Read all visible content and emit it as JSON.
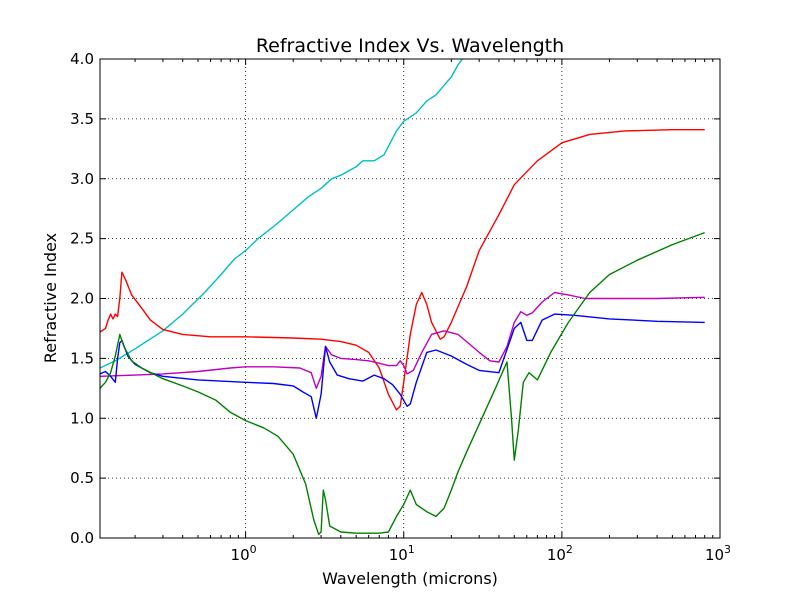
{
  "chart_data": {
    "type": "line",
    "title": "Refractive Index Vs. Wavelength",
    "xlabel": "Wavelength (microns)",
    "ylabel": "Refractive Index",
    "xscale": "log",
    "xlim": [
      0.12,
      1000
    ],
    "ylim": [
      0.0,
      4.0
    ],
    "grid": true,
    "legend": "none",
    "x_ticks": [
      {
        "value": 1,
        "base": "10",
        "exp": "0"
      },
      {
        "value": 10,
        "base": "10",
        "exp": "1"
      },
      {
        "value": 100,
        "base": "10",
        "exp": "2"
      },
      {
        "value": 1000,
        "base": "10",
        "exp": "3"
      }
    ],
    "y_ticks": [
      "0.0",
      "0.5",
      "1.0",
      "1.5",
      "2.0",
      "2.5",
      "3.0",
      "3.5",
      "4.0"
    ],
    "series": [
      {
        "color": "#00bfbf",
        "points": [
          [
            0.12,
            1.42
          ],
          [
            0.15,
            1.48
          ],
          [
            0.2,
            1.58
          ],
          [
            0.3,
            1.73
          ],
          [
            0.4,
            1.87
          ],
          [
            0.55,
            2.05
          ],
          [
            0.7,
            2.2
          ],
          [
            0.85,
            2.33
          ],
          [
            1.0,
            2.4
          ],
          [
            1.2,
            2.5
          ],
          [
            1.5,
            2.6
          ],
          [
            2.0,
            2.74
          ],
          [
            2.5,
            2.85
          ],
          [
            3.0,
            2.92
          ],
          [
            3.5,
            3.0
          ],
          [
            4.0,
            3.03
          ],
          [
            5.0,
            3.1
          ],
          [
            5.5,
            3.15
          ],
          [
            6.5,
            3.15
          ],
          [
            7.5,
            3.2
          ],
          [
            9.0,
            3.4
          ],
          [
            10.0,
            3.48
          ],
          [
            12.0,
            3.55
          ],
          [
            14.0,
            3.65
          ],
          [
            16.0,
            3.7
          ],
          [
            18.0,
            3.78
          ],
          [
            20.0,
            3.85
          ],
          [
            22.0,
            3.95
          ],
          [
            23.5,
            4.0
          ]
        ]
      },
      {
        "color": "#ff0000",
        "points": [
          [
            0.12,
            1.72
          ],
          [
            0.13,
            1.75
          ],
          [
            0.135,
            1.82
          ],
          [
            0.14,
            1.87
          ],
          [
            0.145,
            1.83
          ],
          [
            0.15,
            1.87
          ],
          [
            0.155,
            1.85
          ],
          [
            0.16,
            2.0
          ],
          [
            0.165,
            2.22
          ],
          [
            0.175,
            2.15
          ],
          [
            0.19,
            2.03
          ],
          [
            0.22,
            1.92
          ],
          [
            0.25,
            1.82
          ],
          [
            0.3,
            1.74
          ],
          [
            0.4,
            1.7
          ],
          [
            0.6,
            1.68
          ],
          [
            1.0,
            1.68
          ],
          [
            2.0,
            1.67
          ],
          [
            3.0,
            1.66
          ],
          [
            4.0,
            1.64
          ],
          [
            5.0,
            1.61
          ],
          [
            6.0,
            1.55
          ],
          [
            7.0,
            1.42
          ],
          [
            8.0,
            1.2
          ],
          [
            9.0,
            1.07
          ],
          [
            9.5,
            1.1
          ],
          [
            10.0,
            1.3
          ],
          [
            11.0,
            1.7
          ],
          [
            12.0,
            1.95
          ],
          [
            13.0,
            2.05
          ],
          [
            14.0,
            1.95
          ],
          [
            15.0,
            1.8
          ],
          [
            17.0,
            1.66
          ],
          [
            18.0,
            1.68
          ],
          [
            20.0,
            1.8
          ],
          [
            25.0,
            2.1
          ],
          [
            30.0,
            2.4
          ],
          [
            40.0,
            2.7
          ],
          [
            50.0,
            2.95
          ],
          [
            70.0,
            3.15
          ],
          [
            100.0,
            3.3
          ],
          [
            150.0,
            3.37
          ],
          [
            250.0,
            3.4
          ],
          [
            500.0,
            3.41
          ],
          [
            800.0,
            3.41
          ]
        ]
      },
      {
        "color": "#bf00bf",
        "points": [
          [
            0.12,
            1.35
          ],
          [
            0.2,
            1.36
          ],
          [
            0.3,
            1.37
          ],
          [
            0.5,
            1.39
          ],
          [
            0.8,
            1.42
          ],
          [
            1.0,
            1.43
          ],
          [
            1.5,
            1.43
          ],
          [
            2.2,
            1.42
          ],
          [
            2.6,
            1.38
          ],
          [
            2.8,
            1.25
          ],
          [
            3.0,
            1.35
          ],
          [
            3.2,
            1.6
          ],
          [
            3.5,
            1.53
          ],
          [
            4.0,
            1.5
          ],
          [
            5.0,
            1.49
          ],
          [
            6.0,
            1.48
          ],
          [
            7.0,
            1.46
          ],
          [
            8.0,
            1.44
          ],
          [
            9.0,
            1.44
          ],
          [
            9.5,
            1.48
          ],
          [
            10.0,
            1.44
          ],
          [
            10.5,
            1.37
          ],
          [
            11.5,
            1.4
          ],
          [
            13.0,
            1.55
          ],
          [
            15.0,
            1.7
          ],
          [
            18.0,
            1.73
          ],
          [
            22.0,
            1.7
          ],
          [
            26.0,
            1.62
          ],
          [
            30.0,
            1.55
          ],
          [
            35.0,
            1.48
          ],
          [
            40.0,
            1.47
          ],
          [
            45.0,
            1.6
          ],
          [
            50.0,
            1.8
          ],
          [
            55.0,
            1.89
          ],
          [
            60.0,
            1.86
          ],
          [
            65.0,
            1.88
          ],
          [
            75.0,
            1.97
          ],
          [
            90.0,
            2.05
          ],
          [
            110.0,
            2.03
          ],
          [
            140.0,
            2.0
          ],
          [
            200.0,
            2.0
          ],
          [
            400.0,
            2.0
          ],
          [
            800.0,
            2.01
          ]
        ]
      },
      {
        "color": "#0000ff",
        "points": [
          [
            0.12,
            1.37
          ],
          [
            0.13,
            1.39
          ],
          [
            0.14,
            1.35
          ],
          [
            0.15,
            1.3
          ],
          [
            0.155,
            1.5
          ],
          [
            0.16,
            1.63
          ],
          [
            0.165,
            1.65
          ],
          [
            0.18,
            1.52
          ],
          [
            0.2,
            1.45
          ],
          [
            0.25,
            1.38
          ],
          [
            0.3,
            1.35
          ],
          [
            0.5,
            1.32
          ],
          [
            1.0,
            1.3
          ],
          [
            1.5,
            1.29
          ],
          [
            2.0,
            1.27
          ],
          [
            2.3,
            1.22
          ],
          [
            2.6,
            1.18
          ],
          [
            2.8,
            1.0
          ],
          [
            3.0,
            1.2
          ],
          [
            3.2,
            1.6
          ],
          [
            3.4,
            1.47
          ],
          [
            3.8,
            1.36
          ],
          [
            4.5,
            1.33
          ],
          [
            5.5,
            1.31
          ],
          [
            6.5,
            1.36
          ],
          [
            7.5,
            1.33
          ],
          [
            8.5,
            1.28
          ],
          [
            9.5,
            1.2
          ],
          [
            10.5,
            1.1
          ],
          [
            11.0,
            1.12
          ],
          [
            12.0,
            1.3
          ],
          [
            14.0,
            1.55
          ],
          [
            16.0,
            1.57
          ],
          [
            20.0,
            1.52
          ],
          [
            25.0,
            1.45
          ],
          [
            30.0,
            1.4
          ],
          [
            40.0,
            1.38
          ],
          [
            50.0,
            1.75
          ],
          [
            55.0,
            1.8
          ],
          [
            60.0,
            1.65
          ],
          [
            65.0,
            1.65
          ],
          [
            75.0,
            1.82
          ],
          [
            90.0,
            1.87
          ],
          [
            120.0,
            1.86
          ],
          [
            200.0,
            1.83
          ],
          [
            400.0,
            1.81
          ],
          [
            800.0,
            1.8
          ]
        ]
      },
      {
        "color": "#008000",
        "points": [
          [
            0.12,
            1.25
          ],
          [
            0.13,
            1.3
          ],
          [
            0.14,
            1.38
          ],
          [
            0.15,
            1.52
          ],
          [
            0.16,
            1.7
          ],
          [
            0.17,
            1.6
          ],
          [
            0.19,
            1.48
          ],
          [
            0.22,
            1.42
          ],
          [
            0.3,
            1.33
          ],
          [
            0.4,
            1.27
          ],
          [
            0.5,
            1.22
          ],
          [
            0.65,
            1.15
          ],
          [
            0.8,
            1.05
          ],
          [
            1.0,
            0.98
          ],
          [
            1.3,
            0.92
          ],
          [
            1.6,
            0.85
          ],
          [
            2.0,
            0.7
          ],
          [
            2.4,
            0.45
          ],
          [
            2.7,
            0.15
          ],
          [
            2.9,
            0.03
          ],
          [
            3.0,
            0.05
          ],
          [
            3.1,
            0.4
          ],
          [
            3.2,
            0.32
          ],
          [
            3.4,
            0.1
          ],
          [
            4.0,
            0.05
          ],
          [
            5.0,
            0.04
          ],
          [
            6.0,
            0.04
          ],
          [
            7.0,
            0.04
          ],
          [
            8.0,
            0.05
          ],
          [
            9.0,
            0.18
          ],
          [
            10.0,
            0.28
          ],
          [
            11.0,
            0.4
          ],
          [
            12.0,
            0.28
          ],
          [
            14.0,
            0.22
          ],
          [
            16.0,
            0.18
          ],
          [
            18.0,
            0.25
          ],
          [
            20.0,
            0.4
          ],
          [
            22.0,
            0.55
          ],
          [
            25.0,
            0.72
          ],
          [
            30.0,
            0.95
          ],
          [
            38.0,
            1.25
          ],
          [
            45.0,
            1.47
          ],
          [
            48.0,
            1.0
          ],
          [
            50.0,
            0.65
          ],
          [
            53.0,
            0.9
          ],
          [
            57.0,
            1.3
          ],
          [
            62.0,
            1.38
          ],
          [
            70.0,
            1.32
          ],
          [
            85.0,
            1.55
          ],
          [
            110.0,
            1.8
          ],
          [
            150.0,
            2.05
          ],
          [
            200.0,
            2.2
          ],
          [
            300.0,
            2.32
          ],
          [
            500.0,
            2.45
          ],
          [
            800.0,
            2.55
          ]
        ]
      }
    ]
  }
}
